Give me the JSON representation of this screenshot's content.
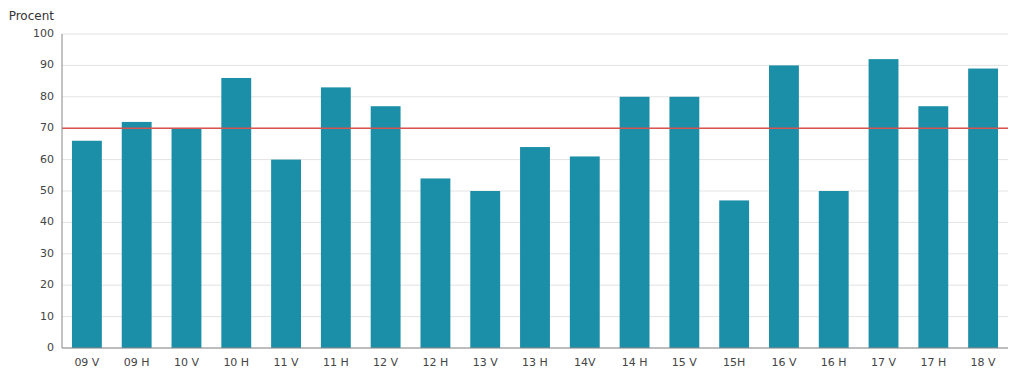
{
  "chart_data": {
    "type": "bar",
    "y_label": "Procent",
    "categories": [
      "09 V",
      "09 H",
      "10 V",
      "10 H",
      "11 V",
      "11 H",
      "12 V",
      "12 H",
      "13 V",
      "13 H",
      "14V",
      "14 H",
      "15 V",
      "15H",
      "16 V",
      "16 H",
      "17 V",
      "17 H",
      "18 V"
    ],
    "values": [
      66,
      72,
      70,
      86,
      60,
      83,
      77,
      54,
      50,
      64,
      61,
      80,
      80,
      47,
      90,
      50,
      92,
      77,
      89
    ],
    "color": "#1b8fa8",
    "reference_line": 70,
    "ylim": [
      0,
      100
    ],
    "yticks": [
      0,
      10,
      20,
      30,
      40,
      50,
      60,
      70,
      80,
      90,
      100
    ],
    "grid": true
  }
}
